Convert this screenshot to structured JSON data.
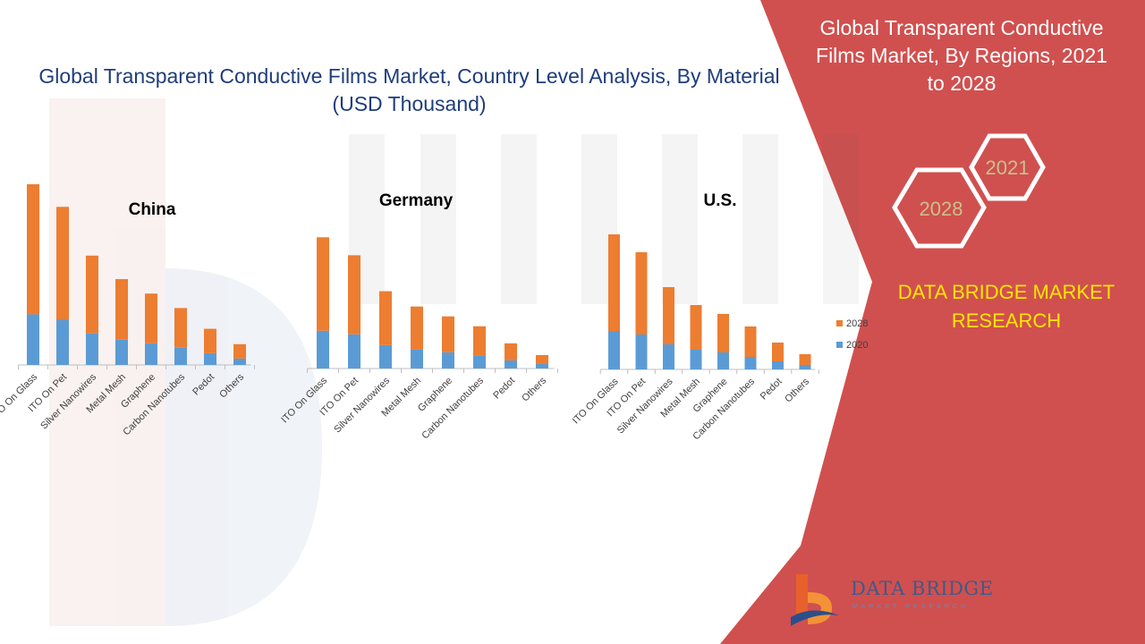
{
  "title": "Global Transparent Conductive Films Market, Country Level Analysis, By Material (USD Thousand)",
  "side_panel": {
    "title": "Global Transparent Conductive Films Market, By Regions, 2021 to 2028",
    "hex_years": [
      "2021",
      "2028"
    ],
    "brand": "DATA BRIDGE MARKET RESEARCH"
  },
  "logo": {
    "name": "DATA BRIDGE",
    "subtitle": "MARKET RESEARCH"
  },
  "colors": {
    "2020": "#5b9bd5",
    "2028": "#ed7d31",
    "panel": "#d0504f",
    "title": "#1f3d7a",
    "brand": "#ffe600"
  },
  "chart_data": [
    {
      "type": "bar",
      "stacked": true,
      "title": "China",
      "categories": [
        "ITO On Glass",
        "ITO On Pet",
        "Silver Nanowires",
        "Metal Mesh",
        "Graphene",
        "Carbon Nanotubes",
        "Pedot",
        "Others"
      ],
      "series": [
        {
          "name": "2020",
          "values": [
            56,
            50,
            35,
            28,
            24,
            19,
            13,
            7
          ]
        },
        {
          "name": "2028",
          "values": [
            144,
            125,
            86,
            67,
            55,
            44,
            27,
            16
          ]
        }
      ],
      "grid": false
    },
    {
      "type": "bar",
      "stacked": true,
      "title": "Germany",
      "categories": [
        "ITO On Glass",
        "ITO On Pet",
        "Silver Nanowires",
        "Metal Mesh",
        "Graphene",
        "Carbon Nanotubes",
        "Pedot",
        "Others"
      ],
      "series": [
        {
          "name": "2020",
          "values": [
            42,
            38,
            26,
            21,
            18,
            14,
            9,
            5
          ]
        },
        {
          "name": "2028",
          "values": [
            104,
            88,
            60,
            48,
            40,
            33,
            19,
            10
          ]
        }
      ],
      "grid": false
    },
    {
      "type": "bar",
      "stacked": true,
      "title": "U.S.",
      "categories": [
        "ITO On Glass",
        "ITO On Pet",
        "Silver Nanowires",
        "Metal Mesh",
        "Graphene",
        "Carbon Nanotubes",
        "Pedot",
        "Others"
      ],
      "series": [
        {
          "name": "2020",
          "values": [
            43,
            39,
            28,
            22,
            19,
            14,
            9,
            5
          ]
        },
        {
          "name": "2028",
          "values": [
            108,
            92,
            64,
            50,
            43,
            34,
            21,
            12
          ]
        }
      ],
      "grid": false,
      "legend": "right"
    }
  ]
}
